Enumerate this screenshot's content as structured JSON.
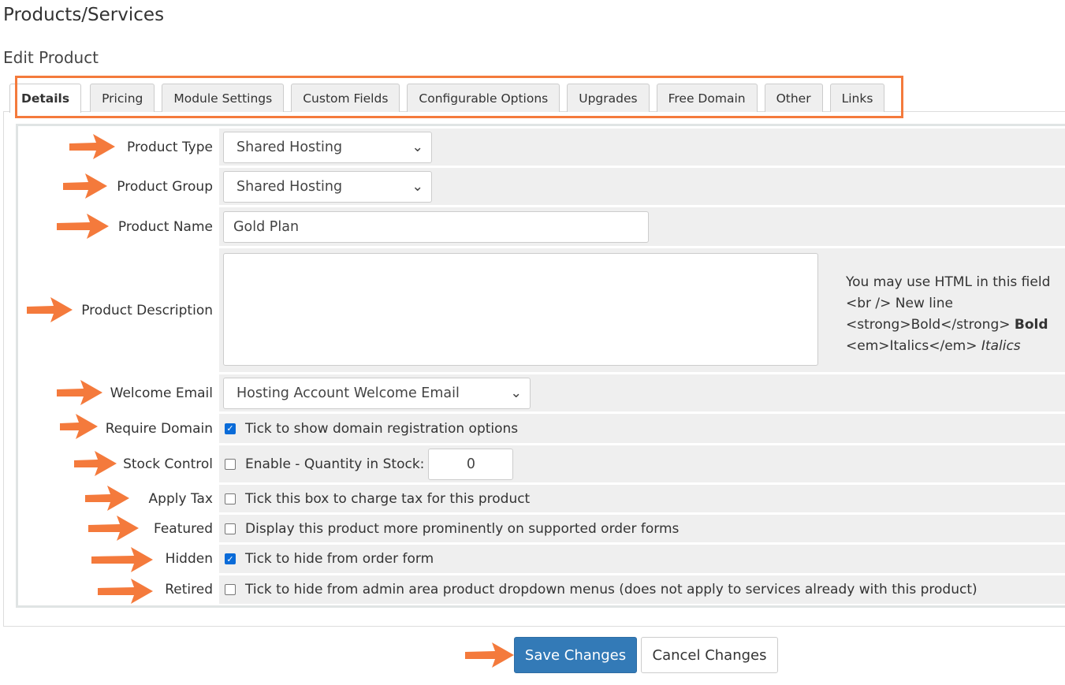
{
  "page_title": "Products/Services",
  "section_title": "Edit Product",
  "tabs": [
    "Details",
    "Pricing",
    "Module Settings",
    "Custom Fields",
    "Configurable Options",
    "Upgrades",
    "Free Domain",
    "Other",
    "Links"
  ],
  "fields": {
    "product_type": {
      "label": "Product Type",
      "value": "Shared Hosting"
    },
    "product_group": {
      "label": "Product Group",
      "value": "Shared Hosting"
    },
    "product_name": {
      "label": "Product Name",
      "value": "Gold Plan"
    },
    "product_description": {
      "label": "Product Description",
      "value": "",
      "help": [
        "You may use HTML in this field",
        "<br /> New line",
        "<strong>Bold</strong>",
        "Bold",
        "<em>Italics</em>",
        "Italics"
      ]
    },
    "welcome_email": {
      "label": "Welcome Email",
      "value": "Hosting Account Welcome Email"
    },
    "require_domain": {
      "label": "Require Domain",
      "text": "Tick to show domain registration options",
      "checked": true
    },
    "stock_control": {
      "label": "Stock Control",
      "text": "Enable - Quantity in Stock:",
      "checked": false,
      "quantity": "0"
    },
    "apply_tax": {
      "label": "Apply Tax",
      "text": "Tick this box to charge tax for this product",
      "checked": false
    },
    "featured": {
      "label": "Featured",
      "text": "Display this product more prominently on supported order forms",
      "checked": false
    },
    "hidden": {
      "label": "Hidden",
      "text": "Tick to hide from order form",
      "checked": true
    },
    "retired": {
      "label": "Retired",
      "text": "Tick to hide from admin area product dropdown menus (does not apply to services already with this product)",
      "checked": false
    }
  },
  "buttons": {
    "save": "Save Changes",
    "cancel": "Cancel Changes"
  },
  "colors": {
    "accent": "#f47a3c",
    "primary": "#337ab7",
    "row_bg": "#efefef"
  }
}
